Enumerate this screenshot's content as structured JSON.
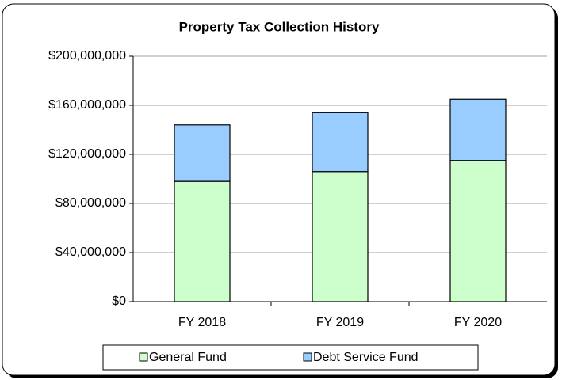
{
  "chart_data": {
    "type": "stacked-bar",
    "title": "Property Tax Collection History",
    "categories": [
      "FY 2018",
      "FY 2019",
      "FY 2020"
    ],
    "series": [
      {
        "name": "General Fund",
        "color": "#ccffcc",
        "values": [
          98000000,
          106000000,
          115000000
        ]
      },
      {
        "name": "Debt Service Fund",
        "color": "#99ccff",
        "values": [
          46000000,
          48000000,
          50000000
        ]
      }
    ],
    "ylim": [
      0,
      200000000
    ],
    "yticks": [
      {
        "value": 0,
        "label": "$0"
      },
      {
        "value": 40000000,
        "label": "$40,000,000"
      },
      {
        "value": 80000000,
        "label": "$80,000,000"
      },
      {
        "value": 120000000,
        "label": "$120,000,000"
      },
      {
        "value": 160000000,
        "label": "$160,000,000"
      },
      {
        "value": 200000000,
        "label": "$200,000,000"
      }
    ],
    "grid": true,
    "legend": "bottom"
  }
}
